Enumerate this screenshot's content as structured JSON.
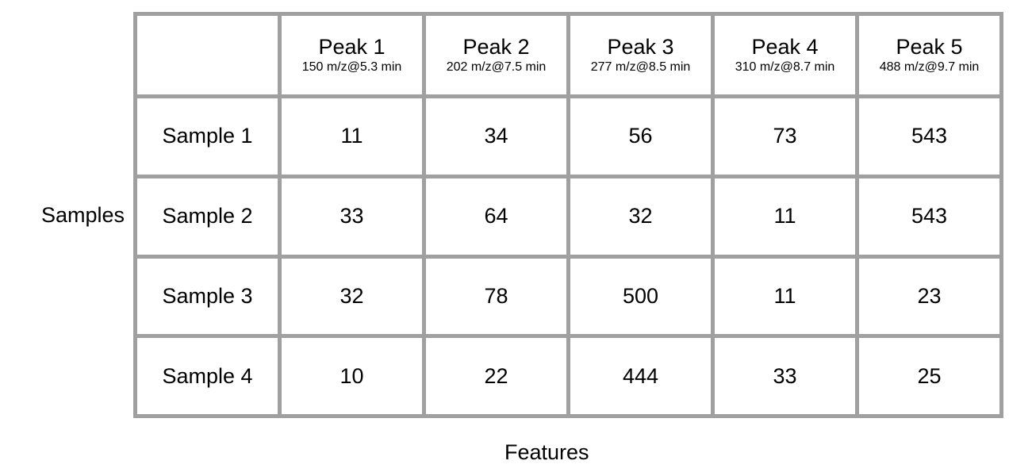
{
  "labels": {
    "rows_axis": "Samples",
    "cols_axis": "Features"
  },
  "chart_data": {
    "type": "table",
    "columns": [
      {
        "name": "Peak 1",
        "detail": "150 m/z@5.3 min"
      },
      {
        "name": "Peak 2",
        "detail": "202 m/z@7.5 min"
      },
      {
        "name": "Peak 3",
        "detail": "277 m/z@8.5 min"
      },
      {
        "name": "Peak 4",
        "detail": "310 m/z@8.7 min"
      },
      {
        "name": "Peak 5",
        "detail": "488 m/z@9.7 min"
      }
    ],
    "rows": [
      {
        "name": "Sample 1",
        "values": [
          11,
          34,
          56,
          73,
          543
        ]
      },
      {
        "name": "Sample 2",
        "values": [
          33,
          64,
          32,
          11,
          543
        ]
      },
      {
        "name": "Sample 3",
        "values": [
          32,
          78,
          500,
          11,
          23
        ]
      },
      {
        "name": "Sample 4",
        "values": [
          10,
          22,
          444,
          33,
          25
        ]
      }
    ]
  }
}
